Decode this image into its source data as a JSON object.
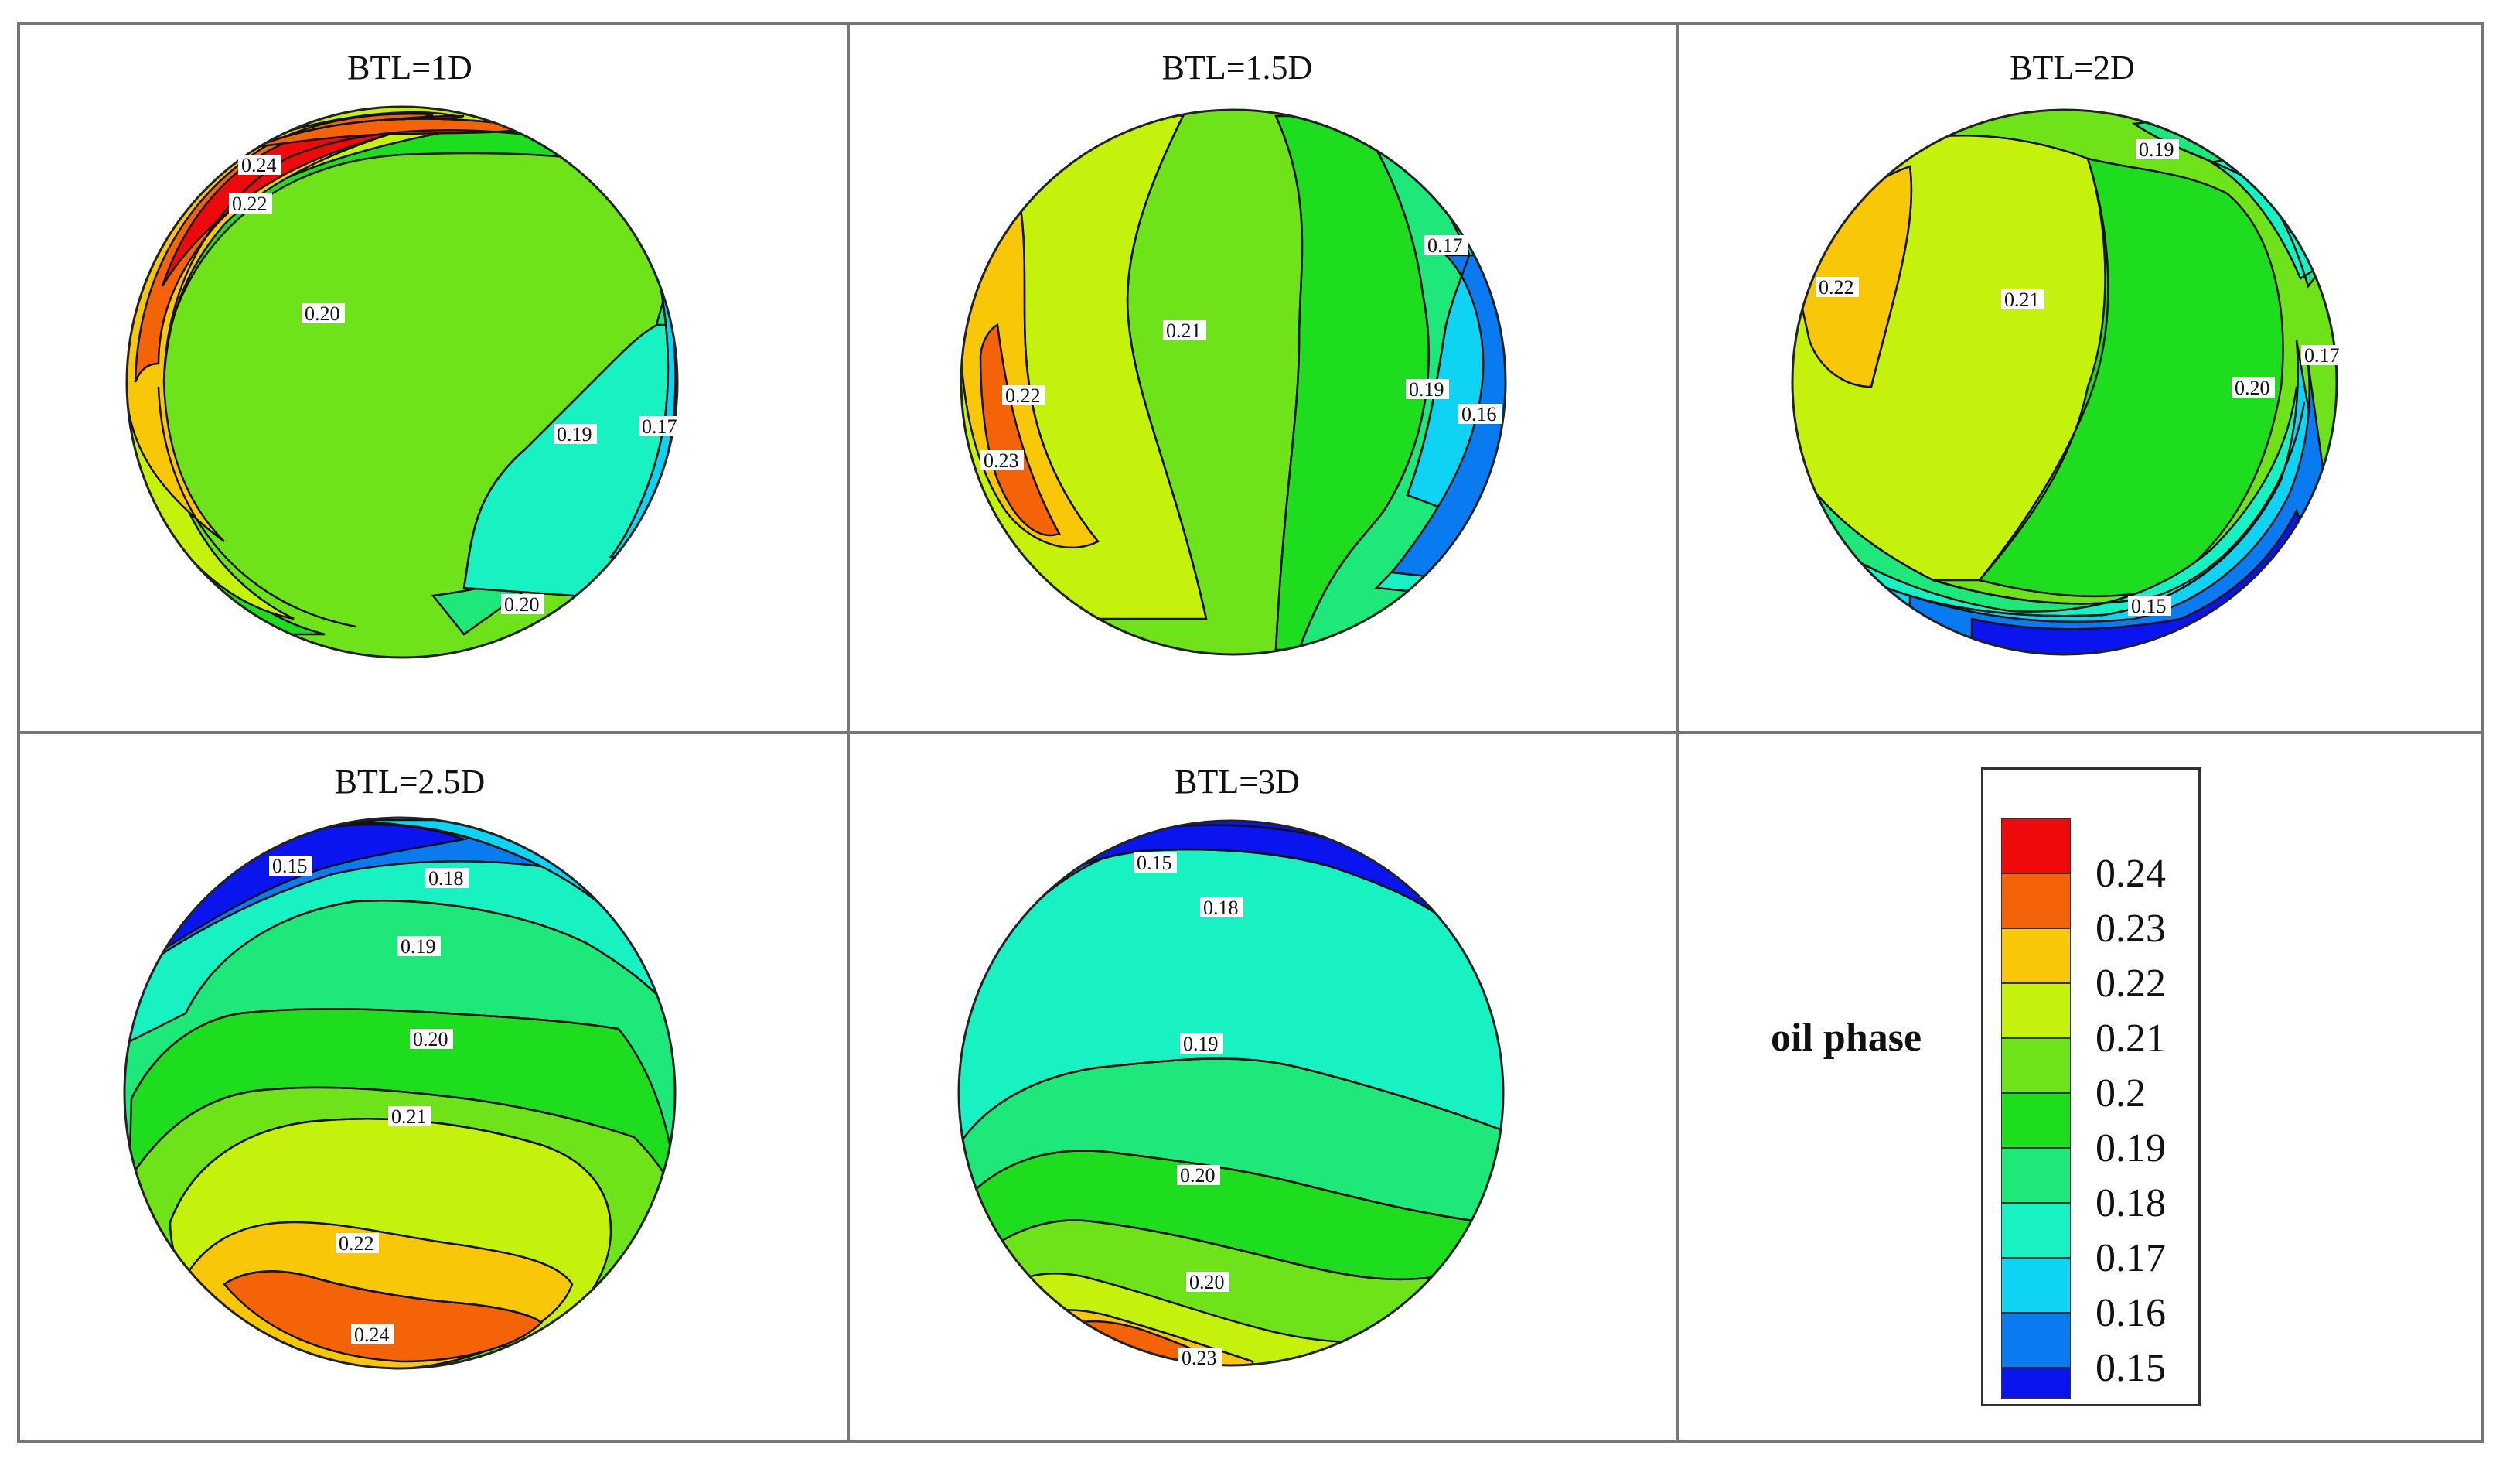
{
  "panels": [
    {
      "title": "BTL=1D",
      "labels": [
        "0.24",
        "0.22",
        "0.20",
        "0.19",
        "0.17",
        "0.20"
      ]
    },
    {
      "title": "BTL=1.5D",
      "labels": [
        "0.21",
        "0.22",
        "0.23",
        "0.17",
        "0.19",
        "0.16"
      ]
    },
    {
      "title": "BTL=2D",
      "labels": [
        "0.19",
        "0.22",
        "0.21",
        "0.20",
        "0.17",
        "0.15"
      ]
    },
    {
      "title": "BTL=2.5D",
      "labels": [
        "0.15",
        "0.18",
        "0.19",
        "0.20",
        "0.21",
        "0.22",
        "0.24"
      ]
    },
    {
      "title": "BTL=3D",
      "labels": [
        "0.15",
        "0.18",
        "0.19",
        "0.20",
        "0.20",
        "0.23"
      ]
    }
  ],
  "legend": {
    "title": "oil phase",
    "levels": [
      {
        "value": "0.24",
        "color": "#ee0a0a"
      },
      {
        "value": "0.23",
        "color": "#f46308"
      },
      {
        "value": "0.22",
        "color": "#f8c808"
      },
      {
        "value": "0.21",
        "color": "#c4f20c"
      },
      {
        "value": "0.2",
        "color": "#6ee31a"
      },
      {
        "value": "0.19",
        "color": "#1edc1e"
      },
      {
        "value": "0.18",
        "color": "#1de879"
      },
      {
        "value": "0.17",
        "color": "#18f2c3"
      },
      {
        "value": "0.16",
        "color": "#0ed3f3"
      },
      {
        "value": "0.15",
        "color": "#0a7af1"
      }
    ],
    "bottom_color": "#0a14ee"
  }
}
